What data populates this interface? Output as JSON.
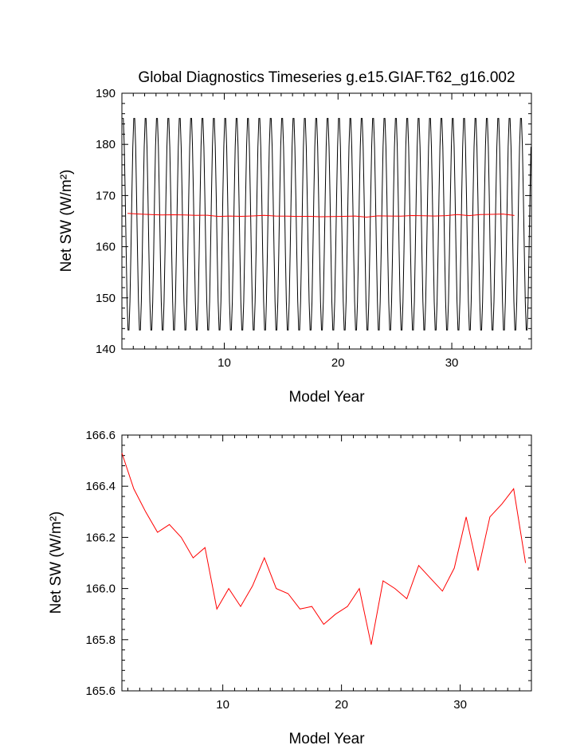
{
  "chart_data": [
    {
      "type": "line",
      "title": "Global Diagnostics Timeseries g.e15.GIAF.T62_g16.002",
      "xlabel": "Model Year",
      "ylabel": "Net SW (W/m²)",
      "xlim": [
        1,
        37
      ],
      "ylim": [
        140,
        190
      ],
      "xticks": [
        10,
        20,
        30
      ],
      "xtick_labels": [
        "10",
        "20",
        "30"
      ],
      "yticks": [
        140,
        150,
        160,
        170,
        180,
        190
      ],
      "ytick_labels": [
        "140",
        "150",
        "160",
        "170",
        "180",
        "190"
      ],
      "grid": false,
      "series": [
        {
          "color": "#000000",
          "kind": "monthly",
          "start_year": 1.0,
          "years": 36,
          "monthly_pattern_max": 185.8,
          "monthly_pattern_min": 143.0
        },
        {
          "color": "#ff0000",
          "kind": "annual",
          "x": [
            1.5,
            2.5,
            3.5,
            4.5,
            5.5,
            6.5,
            7.5,
            8.5,
            9.5,
            10.5,
            11.5,
            12.5,
            13.5,
            14.5,
            15.5,
            16.5,
            17.5,
            18.5,
            19.5,
            20.5,
            21.5,
            22.5,
            23.5,
            24.5,
            25.5,
            26.5,
            27.5,
            28.5,
            29.5,
            30.5,
            31.5,
            32.5,
            33.5,
            34.5,
            35.5
          ],
          "values": [
            166.53,
            166.39,
            166.3,
            166.22,
            166.25,
            166.2,
            166.12,
            166.16,
            165.92,
            166.0,
            165.93,
            166.01,
            166.12,
            166.0,
            165.98,
            165.92,
            165.93,
            165.86,
            165.9,
            165.93,
            166.0,
            165.78,
            166.03,
            166.0,
            165.96,
            166.09,
            166.04,
            165.99,
            166.08,
            166.28,
            166.07,
            166.28,
            166.33,
            166.39,
            166.1
          ]
        }
      ]
    },
    {
      "type": "line",
      "title": "",
      "xlabel": "Model Year",
      "ylabel": "Net SW (W/m²)",
      "xlim": [
        1.5,
        36.0
      ],
      "ylim": [
        165.6,
        166.6
      ],
      "xticks": [
        10,
        20,
        30
      ],
      "xtick_labels": [
        "10",
        "20",
        "30"
      ],
      "yticks": [
        165.6,
        165.8,
        166.0,
        166.2,
        166.4,
        166.6
      ],
      "ytick_labels": [
        "165.6",
        "165.8",
        "166.0",
        "166.2",
        "166.4",
        "166.6"
      ],
      "grid": false,
      "series": [
        {
          "color": "#ff0000",
          "x": [
            1.5,
            2.5,
            3.5,
            4.5,
            5.5,
            6.5,
            7.5,
            8.5,
            9.5,
            10.5,
            11.5,
            12.5,
            13.5,
            14.5,
            15.5,
            16.5,
            17.5,
            18.5,
            19.5,
            20.5,
            21.5,
            22.5,
            23.5,
            24.5,
            25.5,
            26.5,
            27.5,
            28.5,
            29.5,
            30.5,
            31.5,
            32.5,
            33.5,
            34.5,
            35.5
          ],
          "values": [
            166.53,
            166.39,
            166.3,
            166.22,
            166.25,
            166.2,
            166.12,
            166.16,
            165.92,
            166.0,
            165.93,
            166.01,
            166.12,
            166.0,
            165.98,
            165.92,
            165.93,
            165.86,
            165.9,
            165.93,
            166.0,
            165.78,
            166.03,
            166.0,
            165.96,
            166.09,
            166.04,
            165.99,
            166.08,
            166.28,
            166.07,
            166.28,
            166.33,
            166.39,
            166.1
          ]
        }
      ]
    }
  ]
}
